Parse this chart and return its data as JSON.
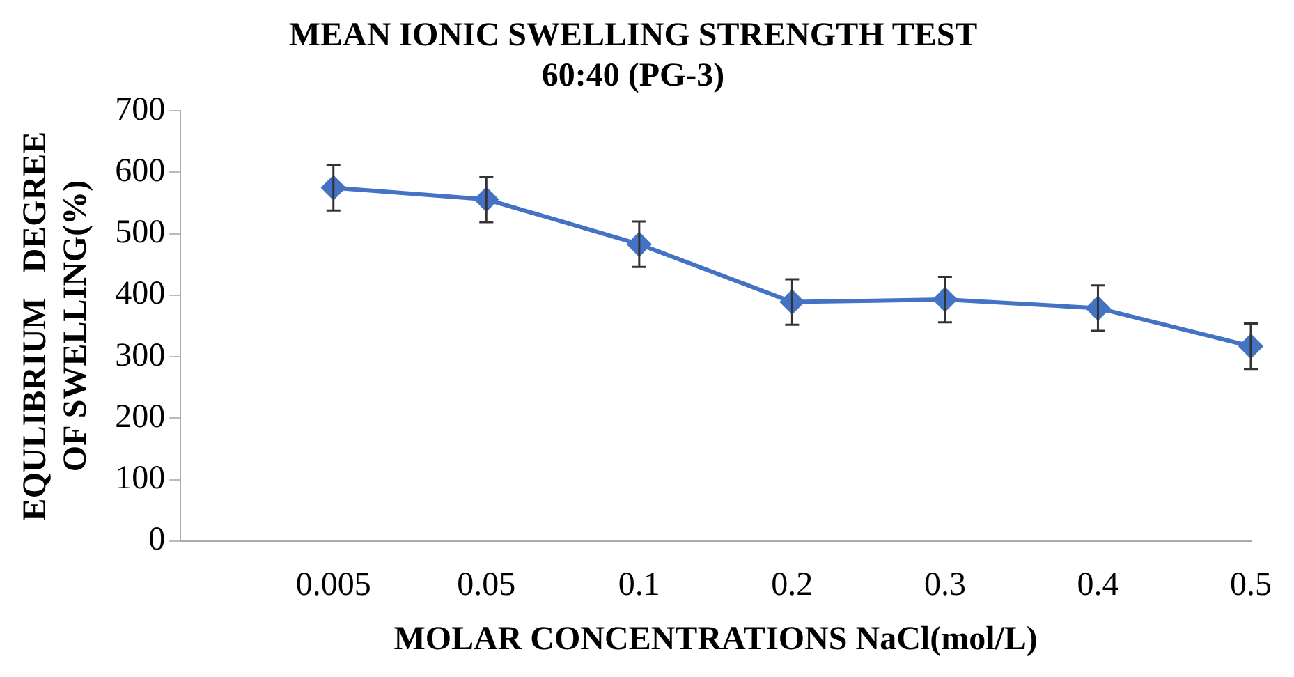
{
  "chart_data": {
    "type": "line",
    "title": [
      "MEAN IONIC SWELLING STRENGTH TEST",
      "60:40 (PG-3)"
    ],
    "xlabel": "MOLAR CONCENTRATIONS NaCl(mol/L)",
    "ylabel": [
      "EQULIBRIUM   DEGREE",
      "OF SWELLING(%)"
    ],
    "categories": [
      null,
      "0.005",
      "0.05",
      "0.1",
      "0.2",
      "0.3",
      "0.4",
      "0.5"
    ],
    "series": [
      {
        "color": "#4472c4",
        "values": [
          null,
          575,
          556,
          483,
          389,
          393,
          379,
          317
        ],
        "errors": [
          null,
          37,
          37,
          37,
          37,
          37,
          37,
          37
        ]
      }
    ],
    "ylim": [
      0,
      700
    ],
    "yticks": [
      0,
      100,
      200,
      300,
      400,
      500,
      600,
      700
    ],
    "grid": false,
    "legend": false,
    "marker": "diamond",
    "line_style": "solid"
  }
}
